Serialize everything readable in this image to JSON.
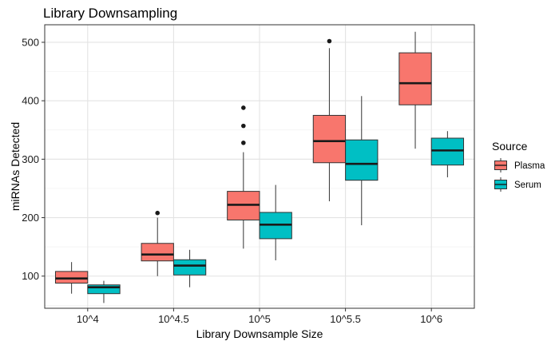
{
  "chart_data": {
    "type": "boxplot",
    "title": "Library Downsampling",
    "xlabel": "Library Downsample Size",
    "ylabel": "miRNAs Detected",
    "ylim": [
      45,
      530
    ],
    "yticks": [
      100,
      200,
      300,
      400,
      500
    ],
    "categories": [
      "10^4",
      "10^4.5",
      "10^5",
      "10^5.5",
      "10^6"
    ],
    "grid": true,
    "legend": {
      "title": "Source",
      "position": "right"
    },
    "series": [
      {
        "name": "Plasma",
        "color": "#F8766D",
        "boxes": [
          {
            "min": 70,
            "q1": 88,
            "median": 96,
            "q3": 108,
            "max": 124,
            "outliers": []
          },
          {
            "min": 100,
            "q1": 126,
            "median": 137,
            "q3": 156,
            "max": 200,
            "outliers": [
              208
            ]
          },
          {
            "min": 147,
            "q1": 196,
            "median": 222,
            "q3": 245,
            "max": 312,
            "outliers": [
              328,
              357,
              388
            ]
          },
          {
            "min": 228,
            "q1": 294,
            "median": 331,
            "q3": 375,
            "max": 490,
            "outliers": [
              502
            ]
          },
          {
            "min": 318,
            "q1": 393,
            "median": 430,
            "q3": 482,
            "max": 518,
            "outliers": []
          }
        ]
      },
      {
        "name": "Serum",
        "color": "#00BFC4",
        "boxes": [
          {
            "min": 54,
            "q1": 70,
            "median": 81,
            "q3": 85,
            "max": 92,
            "outliers": []
          },
          {
            "min": 81,
            "q1": 102,
            "median": 118,
            "q3": 128,
            "max": 145,
            "outliers": []
          },
          {
            "min": 127,
            "q1": 164,
            "median": 188,
            "q3": 209,
            "max": 256,
            "outliers": []
          },
          {
            "min": 187,
            "q1": 264,
            "median": 292,
            "q3": 333,
            "max": 408,
            "outliers": []
          },
          {
            "min": 269,
            "q1": 290,
            "median": 315,
            "q3": 336,
            "max": 348,
            "outliers": []
          }
        ]
      }
    ]
  }
}
